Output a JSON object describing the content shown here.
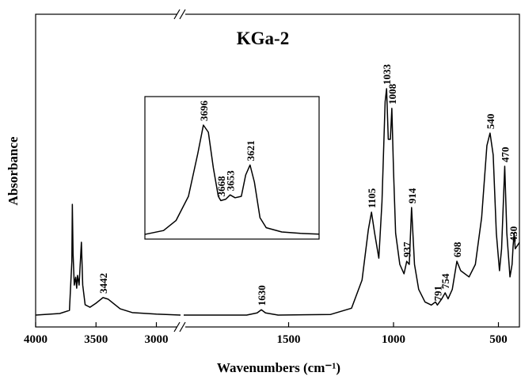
{
  "chart_data": [
    {
      "type": "line",
      "title": "KGa-2",
      "x_label": "Wavenumbers (cm⁻¹)",
      "y_label": "Absorbance",
      "xlim": [
        [
          4000,
          2800
        ],
        [
          2000,
          400
        ]
      ],
      "ylim": [
        0,
        1
      ],
      "xticks": [
        4000,
        3500,
        3000,
        1500,
        1000,
        500
      ],
      "color": "#000000",
      "x": [
        4000,
        3800,
        3720,
        3700,
        3696,
        3690,
        3680,
        3668,
        3660,
        3653,
        3640,
        3621,
        3610,
        3590,
        3550,
        3500,
        3442,
        3400,
        3300,
        3200,
        3000,
        2800,
        2400,
        2000,
        1700,
        1650,
        1630,
        1610,
        1550,
        1300,
        1200,
        1150,
        1120,
        1105,
        1090,
        1070,
        1055,
        1040,
        1033,
        1025,
        1015,
        1008,
        1000,
        990,
        970,
        950,
        937,
        925,
        914,
        900,
        880,
        850,
        820,
        800,
        791,
        770,
        754,
        740,
        720,
        698,
        680,
        640,
        610,
        580,
        555,
        540,
        525,
        510,
        495,
        485,
        470,
        460,
        445,
        435,
        430,
        425,
        420,
        400
      ],
      "values": [
        0.038,
        0.043,
        0.053,
        0.21,
        0.392,
        0.235,
        0.134,
        0.159,
        0.124,
        0.165,
        0.134,
        0.271,
        0.134,
        0.071,
        0.063,
        0.076,
        0.094,
        0.089,
        0.058,
        0.046,
        0.041,
        0.038,
        null,
        0.038,
        0.038,
        0.045,
        0.055,
        0.045,
        0.038,
        0.04,
        0.06,
        0.15,
        0.311,
        0.367,
        0.3,
        0.22,
        0.4,
        0.72,
        0.762,
        0.6,
        0.6,
        0.699,
        0.5,
        0.3,
        0.2,
        0.17,
        0.21,
        0.2,
        0.382,
        0.2,
        0.12,
        0.08,
        0.07,
        0.08,
        0.07,
        0.09,
        0.109,
        0.09,
        0.12,
        0.21,
        0.18,
        0.16,
        0.2,
        0.35,
        0.58,
        0.62,
        0.55,
        0.3,
        0.18,
        0.25,
        0.514,
        0.3,
        0.16,
        0.2,
        0.26,
        0.3,
        0.25,
        0.27
      ],
      "peak_labels": [
        3442,
        1630,
        1105,
        1033,
        1008,
        937,
        914,
        791,
        754,
        698,
        540,
        470,
        430
      ]
    },
    {
      "type": "line",
      "xlim": [
        3790,
        3510
      ],
      "ylim": [
        0,
        1
      ],
      "color": "#000000",
      "x": [
        3790,
        3760,
        3740,
        3720,
        3705,
        3696,
        3688,
        3680,
        3672,
        3668,
        3660,
        3653,
        3645,
        3635,
        3628,
        3621,
        3614,
        3605,
        3595,
        3570,
        3540,
        3510
      ],
      "values": [
        0.033,
        0.06,
        0.13,
        0.3,
        0.6,
        0.8,
        0.75,
        0.5,
        0.3,
        0.27,
        0.28,
        0.31,
        0.29,
        0.3,
        0.45,
        0.52,
        0.4,
        0.15,
        0.08,
        0.05,
        0.04,
        0.035
      ],
      "peak_labels": [
        3696,
        3668,
        3653,
        3621
      ]
    }
  ]
}
